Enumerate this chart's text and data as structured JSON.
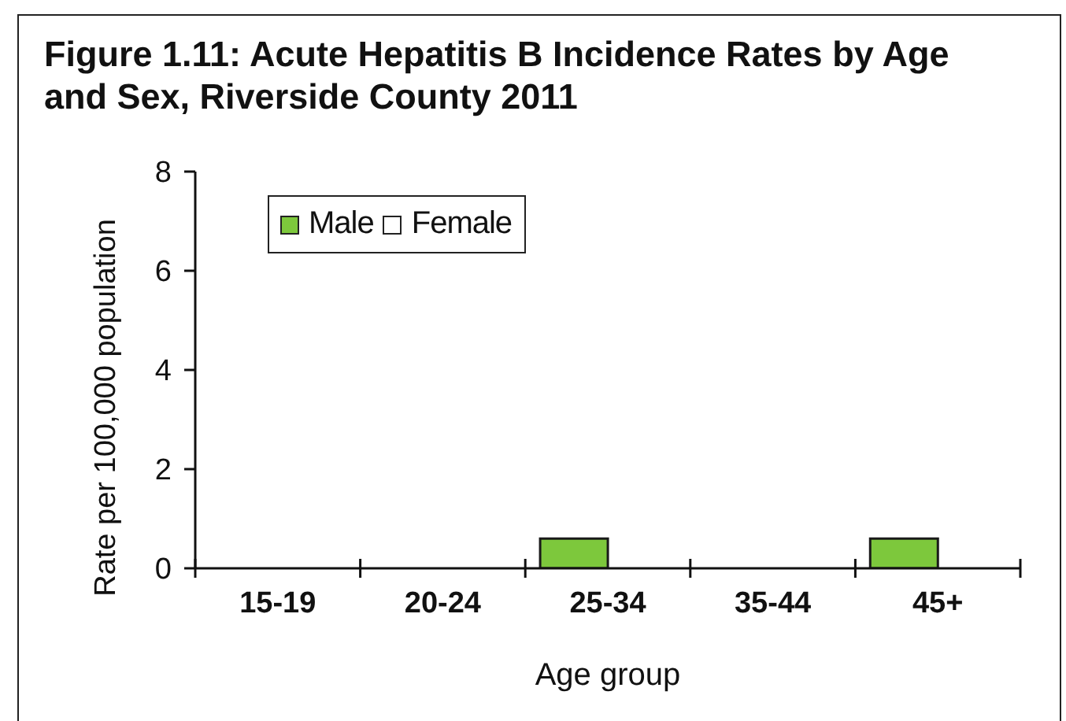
{
  "chart_data": {
    "type": "bar",
    "title": "Figure 1.11: Acute Hepatitis B Incidence Rates by Age and Sex, Riverside County 2011",
    "xlabel": "Age group",
    "ylabel": "Rate per 100,000 population",
    "categories": [
      "15-19",
      "20-24",
      "25-34",
      "35-44",
      "45+"
    ],
    "series": [
      {
        "name": "Male",
        "color": "#7dc83c",
        "values": [
          0,
          0,
          0.6,
          0,
          0.6
        ]
      },
      {
        "name": "Female",
        "color": "#ffffff",
        "values": [
          0,
          0,
          0,
          0,
          0
        ]
      }
    ],
    "ylim": [
      0,
      8
    ],
    "yticks": [
      0,
      2,
      4,
      6,
      8
    ],
    "grid": false,
    "legend": "top left"
  }
}
